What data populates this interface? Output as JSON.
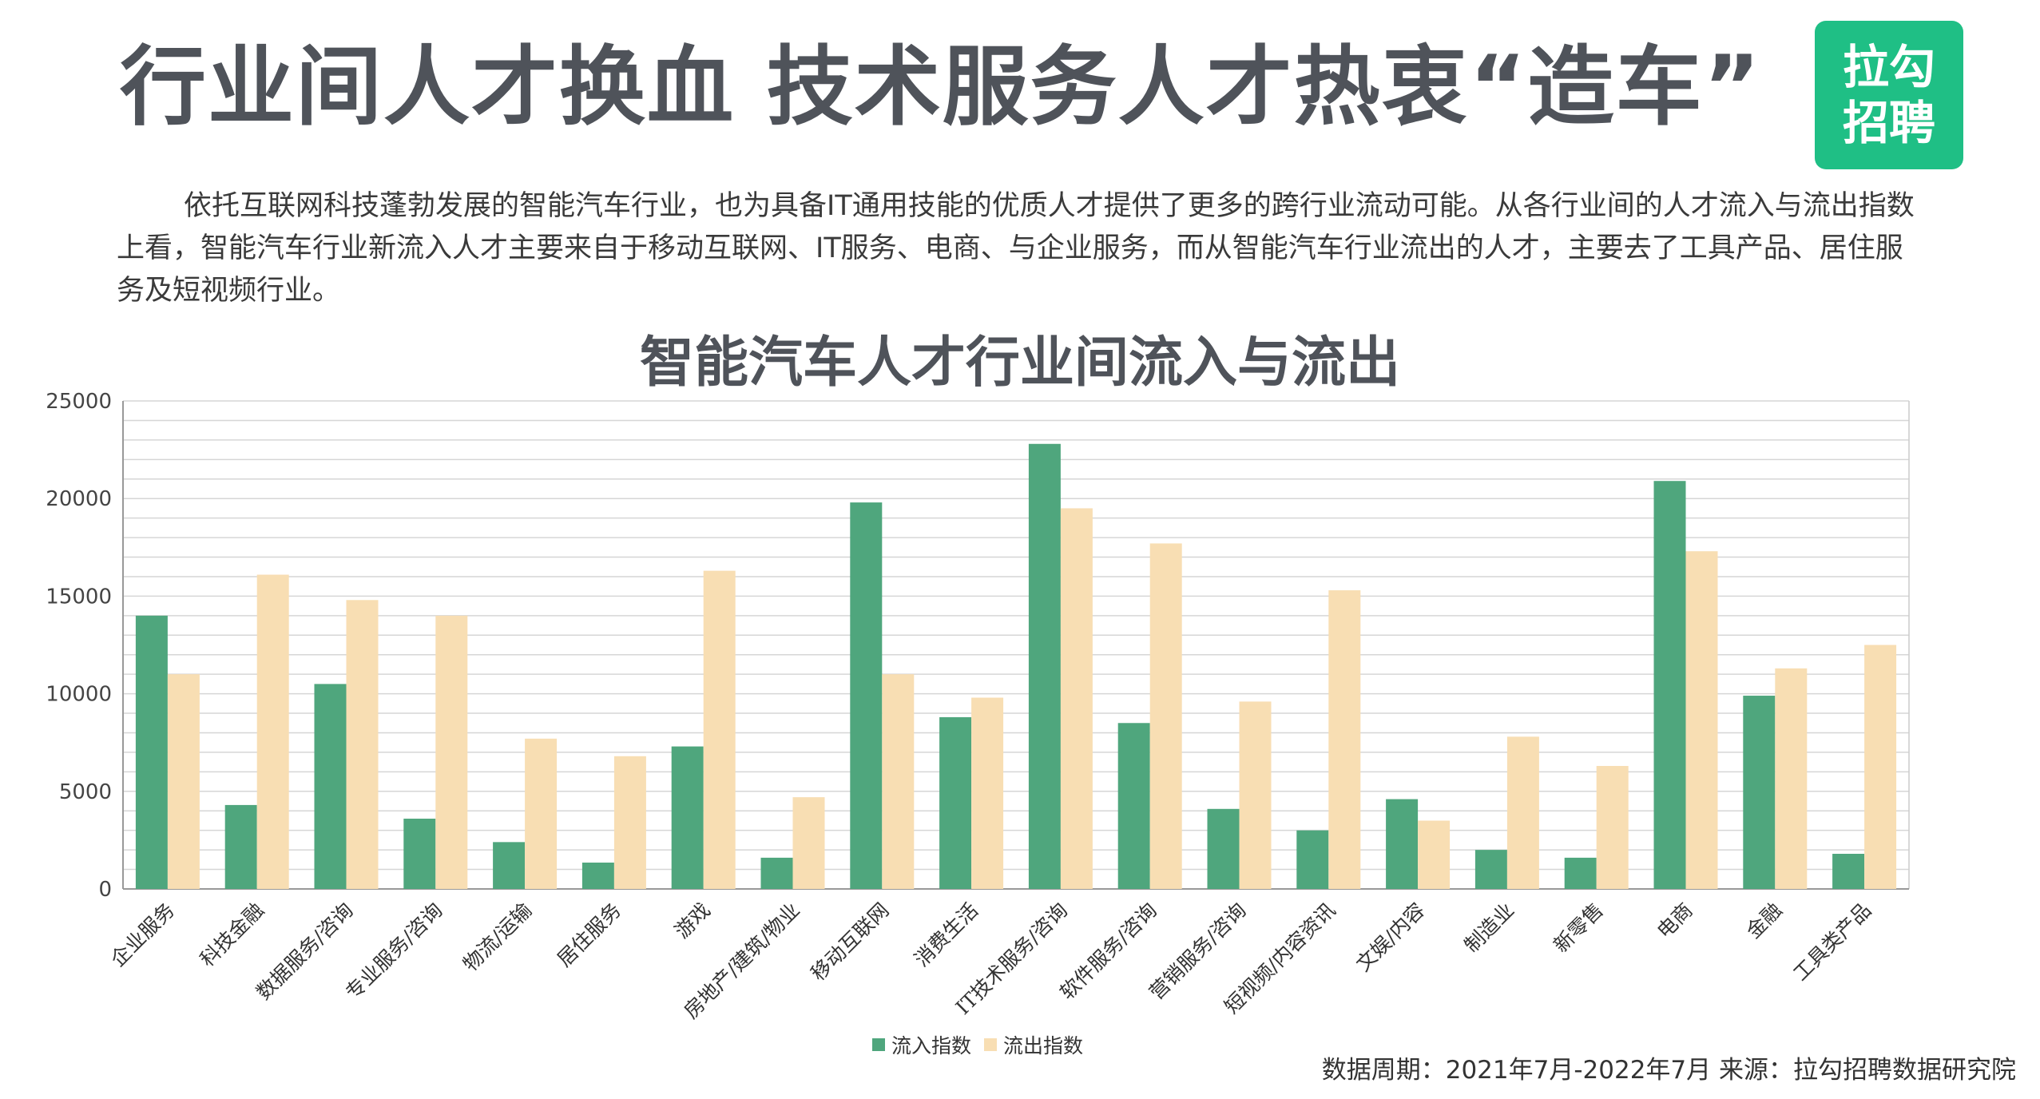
{
  "header": {
    "title": "行业间人才换血 技术服务人才热衷“造车”",
    "logo_line1": "拉勾",
    "logo_line2": "招聘",
    "logo_color": "#1fbf85"
  },
  "intro": "依托互联网科技蓬勃发展的智能汽车行业，也为具备IT通用技能的优质人才提供了更多的跨行业流动可能。从各行业间的人才流入与流出指数上看，智能汽车行业新流入人才主要来自于移动互联网、IT服务、电商、与企业服务，而从智能汽车行业流出的人才，主要去了工具产品、居住服务及短视频行业。",
  "source": "数据周期：2021年7月-2022年7月  来源：拉勾招聘数据研究院",
  "chart_data": {
    "type": "bar",
    "title": "智能汽车人才行业间流入与流出",
    "xlabel": "",
    "ylabel": "",
    "ylim": [
      0,
      25000
    ],
    "yticks": [
      0,
      5000,
      10000,
      15000,
      20000,
      25000
    ],
    "grid": true,
    "legend_position": "bottom",
    "categories": [
      "企业服务",
      "科技金融",
      "数据服务/咨询",
      "专业服务/咨询",
      "物流/运输",
      "居住服务",
      "游戏",
      "房地产/建筑/物业",
      "移动互联网",
      "消费生活",
      "IT技术服务/咨询",
      "软件服务/咨询",
      "营销服务/咨询",
      "短视频/内容资讯",
      "文娱/内容",
      "制造业",
      "新零售",
      "电商",
      "金融",
      "工具类产品"
    ],
    "series": [
      {
        "name": "流入指数",
        "color": "#4fa67d",
        "values": [
          14000,
          4300,
          10500,
          3600,
          2400,
          1350,
          7300,
          1600,
          19800,
          8800,
          22800,
          8500,
          4100,
          3000,
          4600,
          2000,
          1600,
          20900,
          9900,
          1800
        ]
      },
      {
        "name": "流出指数",
        "color": "#f8deb3",
        "values": [
          11000,
          16100,
          14800,
          14000,
          7700,
          6800,
          16300,
          4700,
          11000,
          9800,
          19500,
          17700,
          9600,
          15300,
          3500,
          7800,
          6300,
          17300,
          11300,
          12500
        ]
      }
    ]
  }
}
